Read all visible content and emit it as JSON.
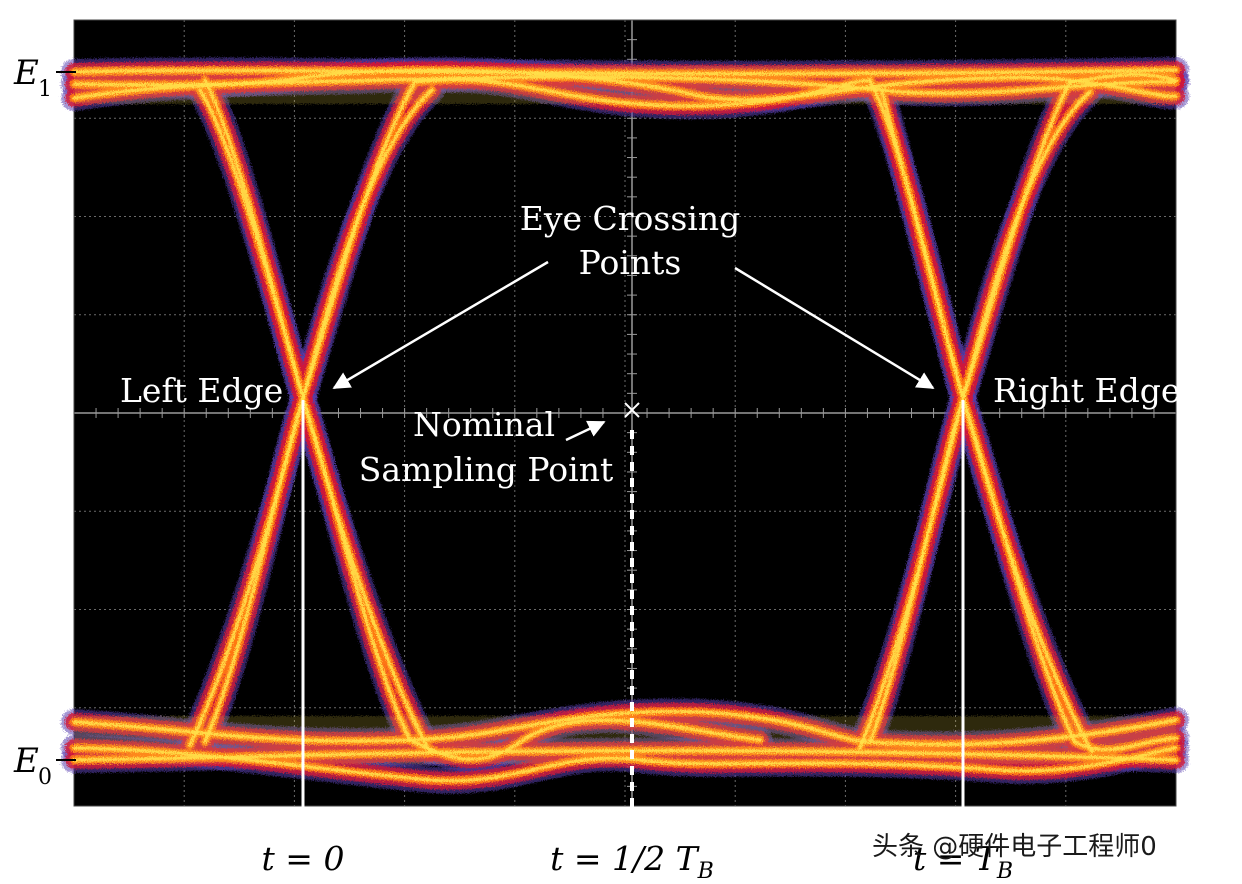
{
  "labels": {
    "e1_letter": "E",
    "e1_sub": "1",
    "e0_letter": "E",
    "e0_sub": "0",
    "crossing_line1": "Eye Crossing",
    "crossing_line2": "Points",
    "left_edge": "Left Edge",
    "right_edge": "Right Edge",
    "nominal_line1": "Nominal",
    "nominal_line2": "Sampling Point",
    "t0": "t = 0",
    "t_half_prefix": "t = 1/2 ",
    "t_half_T": "T",
    "t_half_sub": "B",
    "t_end_prefix": "t = ",
    "t_end_T": "T",
    "t_end_sub": "B"
  },
  "watermark": "头条 @硬件电子工程师0",
  "colors": {
    "screen_bg": "#000000",
    "grid": "#6a6a6a",
    "trace_outer": "#5a3fb0",
    "trace_mid": "#d0183a",
    "trace_core": "#ff7a10",
    "trace_hot": "#ffe14a",
    "annotation": "#ffffff"
  }
}
